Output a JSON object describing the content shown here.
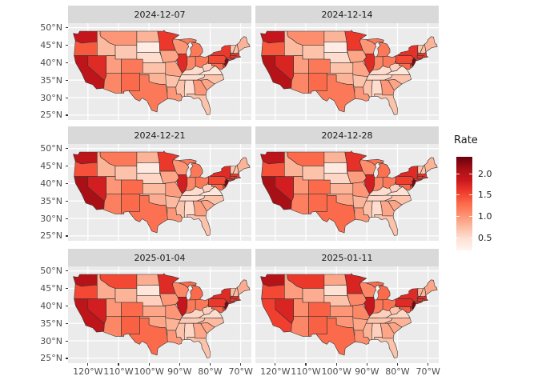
{
  "figure": {
    "background": "#FFFFFF",
    "panel_bg": "#EBEBEB",
    "strip_bg": "#D9D9D9",
    "grid_color": "#FFFFFF",
    "axis_text_color": "#4D4D4D",
    "strip_text_color": "#1A1A1A",
    "state_border_color": "#333333"
  },
  "chart_data": {
    "type": "choropleth",
    "map_region": "contiguous United States, faceted by week",
    "facets": [
      "2024-12-07",
      "2024-12-14",
      "2024-12-21",
      "2024-12-28",
      "2025-01-04",
      "2025-01-11"
    ],
    "projection_extent": {
      "lon": [
        -126.5,
        -66.5
      ],
      "lat": [
        23.6,
        51.3
      ]
    },
    "axes": {
      "x_ticks": [
        "120°W",
        "110°W",
        "100°W",
        "90°W",
        "80°W",
        "70°W"
      ],
      "x_tick_lons": [
        -120,
        -110,
        -100,
        -90,
        -80,
        -70
      ],
      "y_ticks": [
        "50°N",
        "45°N",
        "40°N",
        "35°N",
        "30°N",
        "25°N"
      ],
      "y_tick_lats": [
        50,
        45,
        40,
        35,
        30,
        25
      ]
    },
    "legend": {
      "title": "Rate",
      "ticks": [
        2.0,
        1.5,
        1.0,
        0.5
      ],
      "tick_labels": [
        "2.0",
        "1.5",
        "1.0",
        "0.5"
      ],
      "domain": [
        0.2,
        2.4
      ],
      "palette": "Reds",
      "ramp": [
        "#FFF5F0",
        "#FEE0D2",
        "#FCBBA1",
        "#FC9272",
        "#FB6A4A",
        "#EF3B2C",
        "#CB181D",
        "#A50F15",
        "#67000D"
      ]
    },
    "series_note": "Estimated rate per state for each facet date (read from fill colors)",
    "series": {
      "WA": [
        1.9,
        1.9,
        1.95,
        1.95,
        2.0,
        2.0
      ],
      "OR": [
        1.4,
        1.4,
        1.45,
        1.45,
        1.5,
        1.5
      ],
      "CA": [
        1.95,
        2.0,
        2.1,
        2.1,
        1.95,
        1.55
      ],
      "NV": [
        1.7,
        1.75,
        1.8,
        1.8,
        1.8,
        1.75
      ],
      "ID": [
        0.75,
        0.75,
        0.8,
        0.8,
        0.85,
        0.95
      ],
      "MT": [
        1.0,
        1.05,
        1.2,
        1.3,
        1.5,
        1.6
      ],
      "WY": [
        0.65,
        0.7,
        0.7,
        0.7,
        0.8,
        0.85
      ],
      "UT": [
        0.95,
        0.95,
        1.0,
        1.0,
        1.0,
        1.05
      ],
      "CO": [
        1.2,
        1.2,
        1.3,
        1.3,
        1.3,
        1.35
      ],
      "AZ": [
        1.1,
        1.1,
        1.15,
        1.15,
        1.1,
        1.1
      ],
      "NM": [
        1.3,
        1.3,
        1.3,
        1.3,
        1.35,
        1.35
      ],
      "ND": [
        0.8,
        0.8,
        0.8,
        0.8,
        0.85,
        0.9
      ],
      "SD": [
        0.3,
        0.3,
        0.35,
        0.35,
        0.4,
        0.45
      ],
      "NE": [
        0.5,
        0.5,
        0.55,
        0.55,
        0.6,
        0.7
      ],
      "KS": [
        0.7,
        0.7,
        0.75,
        0.8,
        0.9,
        1.0
      ],
      "OK": [
        0.8,
        0.8,
        0.85,
        0.9,
        0.9,
        1.0
      ],
      "TX": [
        1.2,
        1.2,
        1.25,
        1.3,
        1.3,
        1.3
      ],
      "MN": [
        1.6,
        1.6,
        1.6,
        1.65,
        1.7,
        1.75
      ],
      "IA": [
        0.9,
        0.9,
        0.9,
        0.95,
        1.0,
        1.1
      ],
      "MO": [
        0.9,
        0.9,
        0.95,
        1.0,
        1.0,
        1.1
      ],
      "AR": [
        0.7,
        0.7,
        0.75,
        0.8,
        0.8,
        0.9
      ],
      "LA": [
        1.0,
        1.0,
        1.0,
        1.0,
        1.0,
        1.05
      ],
      "WI": [
        1.0,
        1.0,
        1.0,
        1.05,
        1.1,
        1.1
      ],
      "IL": [
        1.7,
        1.7,
        1.8,
        1.8,
        1.9,
        1.9
      ],
      "MI": [
        1.2,
        1.2,
        1.2,
        1.25,
        1.3,
        1.3
      ],
      "IN": [
        1.1,
        1.1,
        1.1,
        1.1,
        1.2,
        1.2
      ],
      "OH": [
        1.2,
        1.2,
        1.2,
        1.2,
        1.2,
        1.25
      ],
      "KY": [
        0.5,
        0.5,
        0.5,
        0.5,
        0.55,
        0.6
      ],
      "TN": [
        0.5,
        0.5,
        0.5,
        0.55,
        0.65,
        0.7
      ],
      "MS": [
        0.7,
        0.7,
        0.7,
        0.7,
        0.7,
        0.8
      ],
      "AL": [
        0.5,
        0.5,
        0.5,
        0.5,
        0.55,
        0.6
      ],
      "GA": [
        1.0,
        1.0,
        0.95,
        0.9,
        0.9,
        0.9
      ],
      "FL": [
        0.7,
        0.7,
        0.7,
        0.7,
        0.7,
        0.7
      ],
      "SC": [
        0.9,
        0.9,
        0.9,
        0.9,
        0.9,
        0.9
      ],
      "NC": [
        0.7,
        0.7,
        0.7,
        0.7,
        0.75,
        0.8
      ],
      "VA": [
        0.4,
        0.4,
        0.4,
        0.45,
        0.5,
        0.55
      ],
      "WV": [
        0.6,
        0.6,
        0.6,
        0.6,
        0.6,
        0.7
      ],
      "MD": [
        1.3,
        1.3,
        1.3,
        1.3,
        1.35,
        1.4
      ],
      "DE": [
        1.5,
        1.5,
        1.5,
        1.5,
        1.5,
        1.55
      ],
      "NJ": [
        2.25,
        2.3,
        2.3,
        2.3,
        2.3,
        2.3
      ],
      "PA": [
        1.5,
        1.5,
        1.5,
        1.55,
        1.6,
        1.7
      ],
      "NY": [
        1.6,
        1.65,
        1.7,
        1.7,
        1.7,
        1.7
      ],
      "CT": [
        1.6,
        1.6,
        1.6,
        1.6,
        1.6,
        1.65
      ],
      "RI": [
        1.5,
        1.5,
        1.5,
        1.55,
        1.6,
        1.6
      ],
      "MA": [
        1.6,
        1.6,
        1.6,
        1.65,
        1.7,
        1.7
      ],
      "VT": [
        0.7,
        0.7,
        0.7,
        0.7,
        0.75,
        0.8
      ],
      "NH": [
        0.7,
        0.7,
        0.7,
        0.7,
        0.75,
        0.8
      ],
      "ME": [
        0.8,
        0.8,
        0.8,
        0.8,
        0.85,
        0.9
      ]
    }
  }
}
